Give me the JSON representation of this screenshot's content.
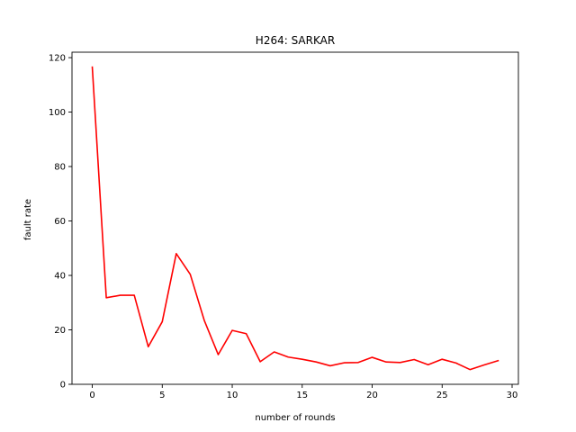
{
  "chart_data": {
    "type": "line",
    "title": "H264: SARKAR",
    "xlabel": "number of rounds",
    "ylabel": "fault rate",
    "xlim": [
      -1.45,
      30.45
    ],
    "ylim": [
      0,
      122
    ],
    "xticks": [
      0,
      5,
      10,
      15,
      20,
      25,
      30
    ],
    "yticks": [
      0,
      20,
      40,
      60,
      80,
      100,
      120
    ],
    "grid": false,
    "series": [
      {
        "color": "#ff0000",
        "x": [
          0,
          1,
          2,
          3,
          4,
          5,
          6,
          7,
          8,
          9,
          10,
          11,
          12,
          13,
          14,
          15,
          16,
          17,
          18,
          19,
          20,
          21,
          22,
          23,
          24,
          25,
          26,
          27,
          28,
          29
        ],
        "values": [
          116.5,
          31.8,
          32.7,
          32.7,
          13.8,
          23.0,
          48.0,
          40.4,
          23.5,
          10.9,
          19.8,
          18.6,
          8.3,
          11.9,
          10.0,
          9.2,
          8.2,
          6.8,
          7.9,
          8.0,
          9.9,
          8.2,
          8.0,
          9.1,
          7.2,
          9.2,
          7.8,
          5.4,
          7.1,
          8.7
        ]
      }
    ]
  }
}
